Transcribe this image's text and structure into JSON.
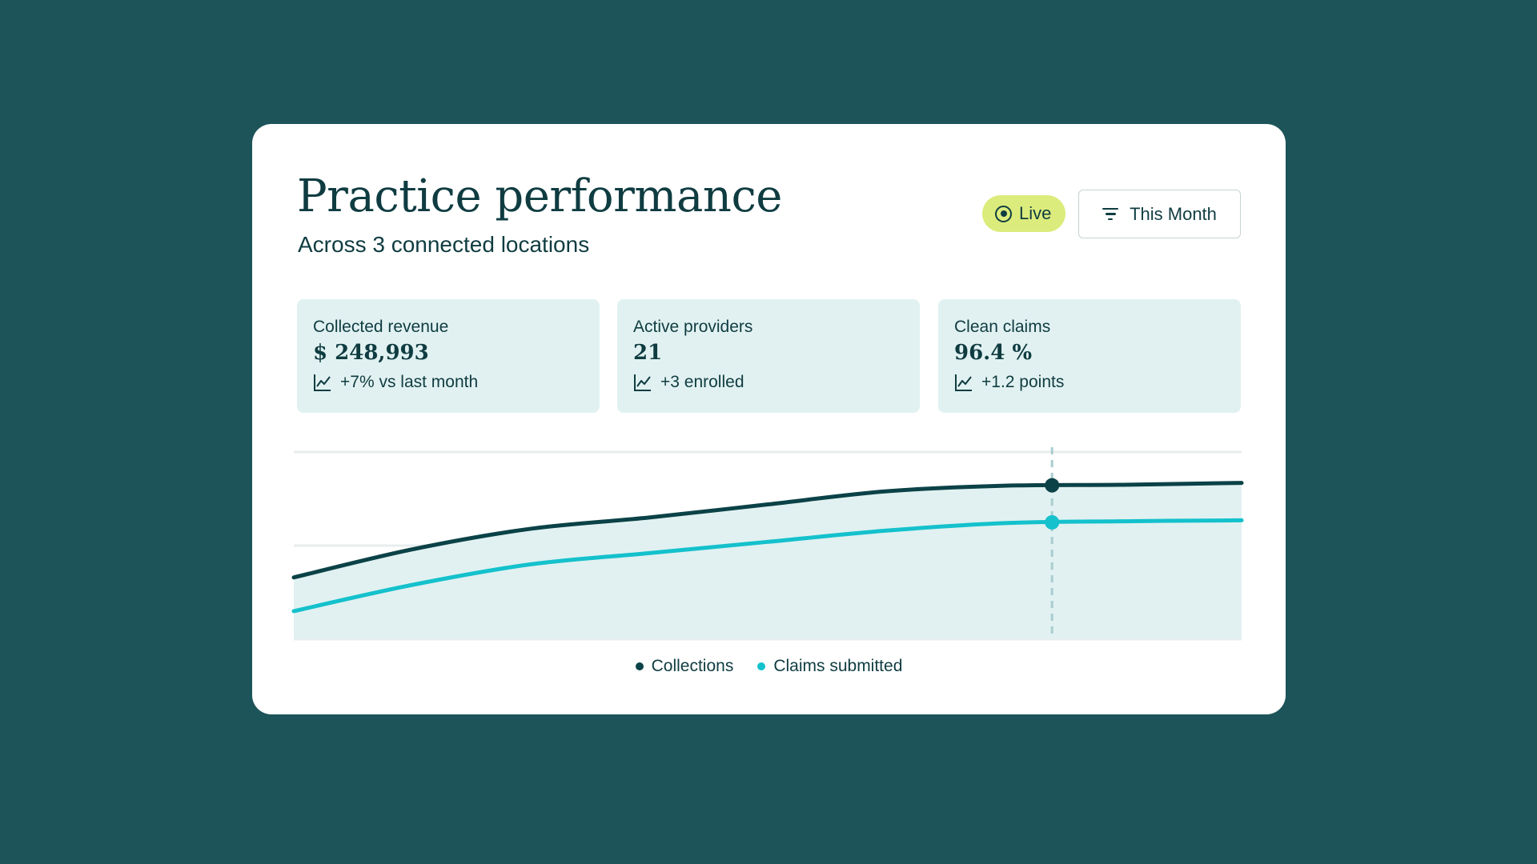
{
  "header": {
    "title": "Practice performance",
    "subtitle": "Across 3 connected locations"
  },
  "controls": {
    "live_label": "Live",
    "period_label": "This Month"
  },
  "stats": [
    {
      "label": "Collected revenue",
      "value": "$ 248,993",
      "change": "+7% vs last month"
    },
    {
      "label": "Active providers",
      "value": "21",
      "change": "+3 enrolled"
    },
    {
      "label": "Clean claims",
      "value": "96.4 %",
      "change": "+1.2 points"
    }
  ],
  "colors": {
    "background": "#1d5459",
    "card": "#ffffff",
    "text": "#0f3c41",
    "live_badge": "#dcec7c",
    "stat_card": "#e1f1f1",
    "collections": "#0b4247",
    "claims": "#14c1cc",
    "area_fill": "#e1f1f1"
  },
  "icons": {
    "live": "radio-dot-icon",
    "period": "filter-icon",
    "trend": "line-chart-icon"
  },
  "chart_data": {
    "type": "line",
    "title": "",
    "xlabel": "",
    "ylabel": "",
    "x": [
      0,
      1,
      2,
      3,
      4,
      5,
      6,
      7,
      8
    ],
    "ylim": [
      0,
      100
    ],
    "grid": true,
    "legend_position": "bottom-center",
    "highlight_index": 6.4,
    "series": [
      {
        "name": "Collections",
        "values": [
          33,
          48,
          59,
          65,
          72,
          79,
          82,
          82.5,
          83.5
        ]
      },
      {
        "name": "Claims submitted",
        "values": [
          15,
          29,
          40,
          46,
          52,
          58,
          62,
          63,
          63.5
        ]
      }
    ]
  }
}
